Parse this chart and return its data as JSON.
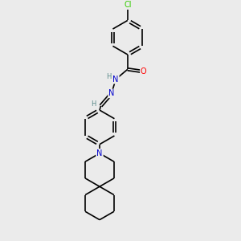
{
  "background_color": "#ebebeb",
  "atom_colors": {
    "C": "#000000",
    "N": "#0000cc",
    "O": "#ff0000",
    "Cl": "#33cc00",
    "H": "#5a8a8a"
  },
  "bond_color": "#000000",
  "bond_width": 1.2,
  "figsize": [
    3.0,
    3.0
  ],
  "dpi": 100,
  "xlim": [
    0,
    10
  ],
  "ylim": [
    0,
    10
  ]
}
